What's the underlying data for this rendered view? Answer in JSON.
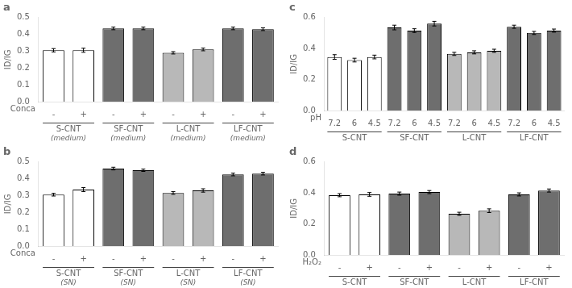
{
  "chart_data": [
    {
      "type": "bar",
      "title": "a",
      "ylabel": "ID/IG",
      "xlabel": "Conca",
      "categories": [
        "-",
        "+",
        "-",
        "+",
        "-",
        "+",
        "-",
        "+"
      ],
      "groups": [
        {
          "name": "S-CNT",
          "sublabel": "(medium)"
        },
        {
          "name": "SF-CNT",
          "sublabel": "(medium)"
        },
        {
          "name": "L-CNT",
          "sublabel": "(medium)"
        },
        {
          "name": "LF-CNT",
          "sublabel": "(medium)"
        }
      ],
      "values": [
        0.305,
        0.305,
        0.435,
        0.435,
        0.29,
        0.31,
        0.435,
        0.43
      ],
      "errors": [
        0.01,
        0.012,
        0.008,
        0.008,
        0.007,
        0.008,
        0.008,
        0.008
      ],
      "colors": [
        "#ffffff",
        "#ffffff",
        "#6e6e6e",
        "#6e6e6e",
        "#b8b8b8",
        "#b8b8b8",
        "#6e6e6e",
        "#6e6e6e"
      ],
      "ylim": [
        0.0,
        0.5
      ],
      "yticks": [
        {
          "value": 0.0,
          "label": "0.0"
        },
        0.1,
        0.2,
        0.3,
        0.4,
        0.5
      ],
      "grid": false
    },
    {
      "type": "bar",
      "title": "b",
      "ylabel": "ID/IG",
      "xlabel": "Conca",
      "categories": [
        "-",
        "+",
        "-",
        "+",
        "-",
        "+",
        "-",
        "+"
      ],
      "groups": [
        {
          "name": "S-CNT",
          "sublabel": "(SN)"
        },
        {
          "name": "SF-CNT",
          "sublabel": "(SN)"
        },
        {
          "name": "L-CNT",
          "sublabel": "(SN)"
        },
        {
          "name": "LF-CNT",
          "sublabel": "(SN)"
        }
      ],
      "values": [
        0.305,
        0.335,
        0.46,
        0.45,
        0.315,
        0.33,
        0.425,
        0.43
      ],
      "errors": [
        0.008,
        0.012,
        0.008,
        0.007,
        0.008,
        0.01,
        0.008,
        0.008
      ],
      "colors": [
        "#ffffff",
        "#ffffff",
        "#6e6e6e",
        "#6e6e6e",
        "#b8b8b8",
        "#b8b8b8",
        "#6e6e6e",
        "#6e6e6e"
      ],
      "ylim": [
        0.0,
        0.5
      ],
      "yticks": [
        {
          "value": 0.0,
          "label": "0.0"
        },
        0.1,
        0.2,
        0.3,
        0.4,
        0.5
      ],
      "grid": false
    },
    {
      "type": "bar",
      "title": "c",
      "ylabel": "ID/IG",
      "xlabel": "pH",
      "categories": [
        "7.2",
        "6",
        "4.5",
        "7.2",
        "6",
        "4.5",
        "7.2",
        "6",
        "4.5",
        "7.2",
        "6",
        "4.5"
      ],
      "groups": [
        {
          "name": "S-CNT"
        },
        {
          "name": "SF-CNT"
        },
        {
          "name": "L-CNT"
        },
        {
          "name": "LF-CNT"
        }
      ],
      "values": [
        0.345,
        0.325,
        0.345,
        0.535,
        0.515,
        0.56,
        0.365,
        0.375,
        0.385,
        0.54,
        0.5,
        0.515
      ],
      "errors": [
        0.015,
        0.012,
        0.012,
        0.015,
        0.012,
        0.015,
        0.01,
        0.01,
        0.01,
        0.01,
        0.01,
        0.01
      ],
      "colors": [
        "#ffffff",
        "#ffffff",
        "#ffffff",
        "#6e6e6e",
        "#6e6e6e",
        "#6e6e6e",
        "#b8b8b8",
        "#b8b8b8",
        "#b8b8b8",
        "#6e6e6e",
        "#6e6e6e",
        "#6e6e6e"
      ],
      "ylim": [
        0.0,
        0.6
      ],
      "yticks": [
        {
          "value": 0.0,
          "label": "0.0"
        },
        0.2,
        0.4,
        0.6
      ],
      "grid": false
    },
    {
      "type": "bar",
      "title": "d",
      "ylabel": "ID/IG",
      "xlabel": "H₂O₂",
      "categories": [
        "-",
        "+",
        "-",
        "+",
        "-",
        "+",
        "-",
        "+"
      ],
      "groups": [
        {
          "name": "S-CNT"
        },
        {
          "name": "SF-CNT"
        },
        {
          "name": "L-CNT"
        },
        {
          "name": "LF-CNT"
        }
      ],
      "values": [
        0.385,
        0.39,
        0.395,
        0.405,
        0.265,
        0.285,
        0.39,
        0.415
      ],
      "errors": [
        0.01,
        0.012,
        0.01,
        0.01,
        0.01,
        0.012,
        0.01,
        0.01
      ],
      "colors": [
        "#ffffff",
        "#ffffff",
        "#6e6e6e",
        "#6e6e6e",
        "#b8b8b8",
        "#b8b8b8",
        "#6e6e6e",
        "#6e6e6e"
      ],
      "ylim": [
        0.0,
        0.6
      ],
      "yticks": [
        {
          "value": 0.0,
          "label": "0.0"
        },
        0.2,
        0.4,
        0.6
      ],
      "grid": false
    }
  ]
}
